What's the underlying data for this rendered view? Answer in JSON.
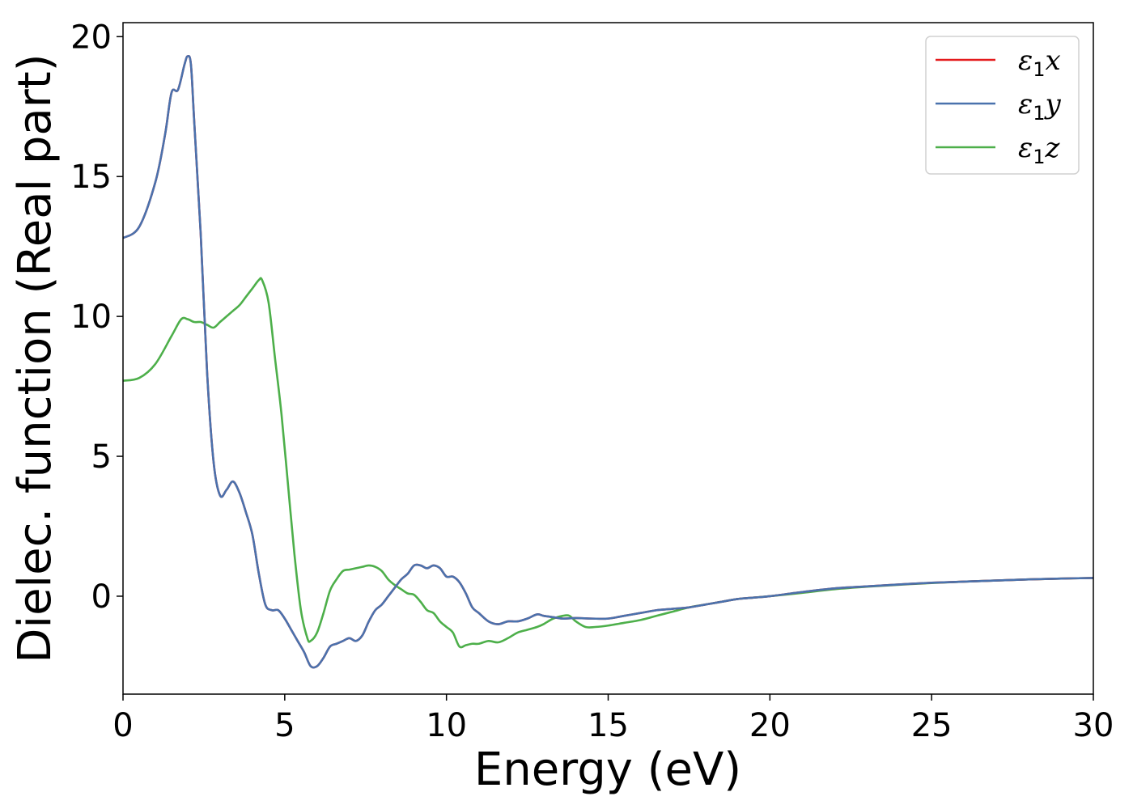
{
  "chart_data": {
    "type": "line",
    "title": "",
    "xlabel": "Energy (eV)",
    "ylabel": "Dielec. function (Real part)",
    "xlim": [
      0,
      30
    ],
    "ylim": [
      -3.5,
      20.5
    ],
    "xticks": [
      0,
      5,
      10,
      15,
      20,
      25,
      30
    ],
    "yticks": [
      0,
      5,
      10,
      15,
      20
    ],
    "grid": false,
    "legend_position": "top-right",
    "series": [
      {
        "name": "ε1x",
        "legend_base": "ε",
        "legend_sub": "1",
        "legend_var": "x",
        "color": "#e41a1c",
        "x": [
          0,
          0.5,
          1.0,
          1.3,
          1.5,
          1.7,
          1.9,
          2.0,
          2.1,
          2.2,
          2.4,
          2.6,
          2.8,
          3.0,
          3.2,
          3.4,
          3.6,
          3.8,
          4.0,
          4.2,
          4.4,
          4.6,
          4.8,
          5.0,
          5.2,
          5.4,
          5.6,
          5.8,
          6.0,
          6.2,
          6.4,
          6.6,
          6.8,
          7.0,
          7.2,
          7.4,
          7.6,
          7.8,
          8.0,
          8.2,
          8.4,
          8.6,
          8.8,
          9.0,
          9.2,
          9.4,
          9.6,
          9.8,
          10.0,
          10.2,
          10.4,
          10.6,
          10.8,
          11.0,
          11.3,
          11.6,
          11.9,
          12.2,
          12.5,
          12.8,
          13.0,
          13.3,
          13.6,
          14.0,
          14.5,
          15.0,
          15.5,
          16.0,
          16.5,
          17.0,
          17.5,
          18.0,
          18.5,
          19.0,
          19.5,
          20.0,
          21.0,
          22.0,
          23.0,
          24.0,
          25.0,
          26.0,
          27.0,
          28.0,
          29.0,
          30.0
        ],
        "values": [
          12.8,
          13.2,
          14.8,
          16.5,
          18.0,
          18.1,
          19.0,
          19.3,
          19.0,
          17.0,
          13.0,
          8.0,
          4.8,
          3.6,
          3.8,
          4.1,
          3.7,
          3.0,
          2.2,
          0.8,
          -0.3,
          -0.5,
          -0.5,
          -0.8,
          -1.2,
          -1.6,
          -2.0,
          -2.5,
          -2.5,
          -2.2,
          -1.8,
          -1.7,
          -1.6,
          -1.5,
          -1.6,
          -1.4,
          -0.9,
          -0.5,
          -0.3,
          0.0,
          0.3,
          0.6,
          0.8,
          1.1,
          1.1,
          1.0,
          1.1,
          1.0,
          0.7,
          0.7,
          0.5,
          0.1,
          -0.4,
          -0.6,
          -0.9,
          -1.0,
          -0.9,
          -0.9,
          -0.8,
          -0.65,
          -0.7,
          -0.75,
          -0.8,
          -0.78,
          -0.8,
          -0.8,
          -0.7,
          -0.6,
          -0.5,
          -0.45,
          -0.4,
          -0.3,
          -0.2,
          -0.1,
          -0.05,
          0.0,
          0.15,
          0.28,
          0.35,
          0.42,
          0.48,
          0.52,
          0.56,
          0.6,
          0.63,
          0.65
        ]
      },
      {
        "name": "ε1y",
        "legend_base": "ε",
        "legend_sub": "1",
        "legend_var": "y",
        "color": "#4a72ad",
        "x": [
          0,
          0.5,
          1.0,
          1.3,
          1.5,
          1.7,
          1.9,
          2.0,
          2.1,
          2.2,
          2.4,
          2.6,
          2.8,
          3.0,
          3.2,
          3.4,
          3.6,
          3.8,
          4.0,
          4.2,
          4.4,
          4.6,
          4.8,
          5.0,
          5.2,
          5.4,
          5.6,
          5.8,
          6.0,
          6.2,
          6.4,
          6.6,
          6.8,
          7.0,
          7.2,
          7.4,
          7.6,
          7.8,
          8.0,
          8.2,
          8.4,
          8.6,
          8.8,
          9.0,
          9.2,
          9.4,
          9.6,
          9.8,
          10.0,
          10.2,
          10.4,
          10.6,
          10.8,
          11.0,
          11.3,
          11.6,
          11.9,
          12.2,
          12.5,
          12.8,
          13.0,
          13.3,
          13.6,
          14.0,
          14.5,
          15.0,
          15.5,
          16.0,
          16.5,
          17.0,
          17.5,
          18.0,
          18.5,
          19.0,
          19.5,
          20.0,
          21.0,
          22.0,
          23.0,
          24.0,
          25.0,
          26.0,
          27.0,
          28.0,
          29.0,
          30.0
        ],
        "values": [
          12.8,
          13.2,
          14.8,
          16.5,
          18.0,
          18.1,
          19.0,
          19.3,
          19.0,
          17.0,
          13.0,
          8.0,
          4.8,
          3.6,
          3.8,
          4.1,
          3.7,
          3.0,
          2.2,
          0.8,
          -0.3,
          -0.5,
          -0.5,
          -0.8,
          -1.2,
          -1.6,
          -2.0,
          -2.5,
          -2.5,
          -2.2,
          -1.8,
          -1.7,
          -1.6,
          -1.5,
          -1.6,
          -1.4,
          -0.9,
          -0.5,
          -0.3,
          0.0,
          0.3,
          0.6,
          0.8,
          1.1,
          1.1,
          1.0,
          1.1,
          1.0,
          0.7,
          0.7,
          0.5,
          0.1,
          -0.4,
          -0.6,
          -0.9,
          -1.0,
          -0.9,
          -0.9,
          -0.8,
          -0.65,
          -0.7,
          -0.75,
          -0.8,
          -0.78,
          -0.8,
          -0.8,
          -0.7,
          -0.6,
          -0.5,
          -0.45,
          -0.4,
          -0.3,
          -0.2,
          -0.1,
          -0.05,
          0.0,
          0.15,
          0.28,
          0.35,
          0.42,
          0.48,
          0.52,
          0.56,
          0.6,
          0.63,
          0.65
        ]
      },
      {
        "name": "ε1z",
        "legend_base": "ε",
        "legend_sub": "1",
        "legend_var": "z",
        "color": "#4daf4a",
        "x": [
          0,
          0.5,
          1.0,
          1.5,
          1.8,
          2.0,
          2.2,
          2.4,
          2.6,
          2.8,
          3.0,
          3.2,
          3.4,
          3.6,
          3.8,
          4.0,
          4.2,
          4.3,
          4.5,
          4.7,
          4.9,
          5.1,
          5.3,
          5.5,
          5.7,
          5.8,
          6.0,
          6.2,
          6.4,
          6.6,
          6.8,
          7.0,
          7.2,
          7.4,
          7.6,
          7.8,
          8.0,
          8.2,
          8.4,
          8.6,
          8.8,
          9.0,
          9.2,
          9.4,
          9.6,
          9.8,
          10.0,
          10.2,
          10.4,
          10.6,
          10.8,
          11.0,
          11.3,
          11.6,
          11.9,
          12.2,
          12.5,
          12.8,
          13.0,
          13.3,
          13.6,
          13.8,
          14.0,
          14.3,
          14.6,
          15.0,
          15.5,
          16.0,
          16.5,
          17.0,
          17.5,
          18.0,
          18.5,
          19.0,
          19.5,
          20.0,
          21.0,
          22.0,
          23.0,
          24.0,
          25.0,
          26.0,
          27.0,
          28.0,
          29.0,
          30.0
        ],
        "values": [
          7.7,
          7.8,
          8.3,
          9.3,
          9.9,
          9.9,
          9.8,
          9.8,
          9.7,
          9.6,
          9.8,
          10.0,
          10.2,
          10.4,
          10.7,
          11.0,
          11.3,
          11.3,
          10.5,
          8.5,
          6.5,
          4.0,
          1.5,
          -0.5,
          -1.5,
          -1.6,
          -1.3,
          -0.6,
          0.2,
          0.6,
          0.9,
          0.95,
          1.0,
          1.05,
          1.1,
          1.05,
          0.9,
          0.6,
          0.4,
          0.25,
          0.1,
          0.05,
          -0.2,
          -0.5,
          -0.6,
          -0.9,
          -1.1,
          -1.3,
          -1.8,
          -1.75,
          -1.7,
          -1.7,
          -1.6,
          -1.65,
          -1.5,
          -1.3,
          -1.2,
          -1.1,
          -1.0,
          -0.8,
          -0.7,
          -0.7,
          -0.9,
          -1.1,
          -1.1,
          -1.05,
          -0.95,
          -0.85,
          -0.7,
          -0.55,
          -0.4,
          -0.3,
          -0.2,
          -0.1,
          -0.05,
          0.0,
          0.12,
          0.25,
          0.34,
          0.41,
          0.47,
          0.52,
          0.56,
          0.6,
          0.63,
          0.65
        ]
      }
    ]
  }
}
